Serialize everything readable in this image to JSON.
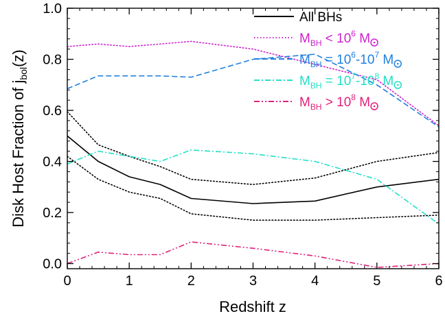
{
  "chart_data": {
    "type": "line",
    "xlabel": "Redshift z",
    "ylabel_main": "Disk Host Fraction of j",
    "ylabel_sub": "bol",
    "ylabel_tail": "(z)",
    "xlim": [
      0,
      6
    ],
    "ylim": [
      -0.02,
      1.0
    ],
    "xticks": [
      0,
      1,
      2,
      3,
      4,
      5,
      6
    ],
    "yticks": [
      0.0,
      0.2,
      0.4,
      0.6,
      0.8,
      1.0
    ],
    "xtick_labels": [
      "0",
      "1",
      "2",
      "3",
      "4",
      "5",
      "6"
    ],
    "ytick_labels": [
      "0.0",
      "0.2",
      "0.4",
      "0.6",
      "0.8",
      "1.0"
    ],
    "grid": false,
    "legend_position": "top-right",
    "colors": {
      "all": "#000000",
      "m6": "#cc22cc",
      "m67": "#1f7fe0",
      "m78": "#20e0c8",
      "m8": "#e0207a"
    },
    "series": [
      {
        "name": "All BHs",
        "legend": {
          "pre": "All BHs",
          "sub": "",
          "mid": "",
          "sup1": "",
          "mid2": "",
          "sup2": "",
          "post": ""
        },
        "color": "#000000",
        "style": "solid",
        "x": [
          0,
          0.5,
          1,
          1.5,
          2,
          3,
          4,
          5,
          6
        ],
        "y": [
          0.5,
          0.4,
          0.34,
          0.31,
          0.255,
          0.235,
          0.245,
          0.3,
          0.33
        ]
      },
      {
        "name": "All BHs upper bound",
        "legend": null,
        "color": "#000000",
        "style": "dotted",
        "x": [
          0,
          0.5,
          1,
          1.5,
          2,
          3,
          4,
          5,
          6
        ],
        "y": [
          0.595,
          0.465,
          0.42,
          0.38,
          0.33,
          0.31,
          0.335,
          0.4,
          0.435
        ]
      },
      {
        "name": "All BHs lower bound",
        "legend": null,
        "color": "#000000",
        "style": "dotted",
        "x": [
          0,
          0.5,
          1,
          1.5,
          2,
          3,
          4,
          5,
          6
        ],
        "y": [
          0.42,
          0.33,
          0.28,
          0.255,
          0.195,
          0.17,
          0.17,
          0.18,
          0.19
        ]
      },
      {
        "name": "M_BH < 10^6 M_sun",
        "legend": {
          "pre": "M",
          "sub": "BH",
          "mid": " < 10",
          "sup1": "6",
          "mid2": "",
          "sup2": "",
          "post": " M"
        },
        "color": "#cc22cc",
        "style": "dotted",
        "x": [
          0,
          0.5,
          1,
          1.5,
          2,
          3,
          4,
          5,
          6
        ],
        "y": [
          0.85,
          0.86,
          0.85,
          0.86,
          0.87,
          0.84,
          0.78,
          0.72,
          0.54
        ]
      },
      {
        "name": "M_BH = 10^6-10^7 M_sun",
        "legend": {
          "pre": "M",
          "sub": "BH",
          "mid": " = 10",
          "sup1": "6",
          "mid2": "-10",
          "sup2": "7",
          "post": " M"
        },
        "color": "#1f7fe0",
        "style": "dashed",
        "x": [
          0,
          0.5,
          1,
          1.5,
          2,
          3,
          4,
          5,
          6
        ],
        "y": [
          0.685,
          0.735,
          0.735,
          0.735,
          0.73,
          0.8,
          0.82,
          0.7,
          0.535
        ]
      },
      {
        "name": "M_BH = 10^7-10^8 M_sun",
        "legend": {
          "pre": "M",
          "sub": "BH",
          "mid": " = 10",
          "sup1": "7",
          "mid2": "-10",
          "sup2": "8",
          "post": " M"
        },
        "color": "#20e0c8",
        "style": "dashdot",
        "x": [
          0,
          0.5,
          1,
          1.5,
          2,
          3,
          4,
          5,
          6
        ],
        "y": [
          0.39,
          0.44,
          0.42,
          0.4,
          0.445,
          0.43,
          0.4,
          0.33,
          0.155
        ]
      },
      {
        "name": "M_BH > 10^8 M_sun",
        "legend": {
          "pre": "M",
          "sub": "BH",
          "mid": " > 10",
          "sup1": "8",
          "mid2": "",
          "sup2": "",
          "post": " M"
        },
        "color": "#e0207a",
        "style": "dashdotdot",
        "x": [
          0,
          0.5,
          1,
          1.5,
          2,
          3,
          4,
          5,
          6
        ],
        "y": [
          0.0,
          0.045,
          0.035,
          0.035,
          0.085,
          0.06,
          0.03,
          -0.015,
          0.0
        ]
      }
    ]
  }
}
